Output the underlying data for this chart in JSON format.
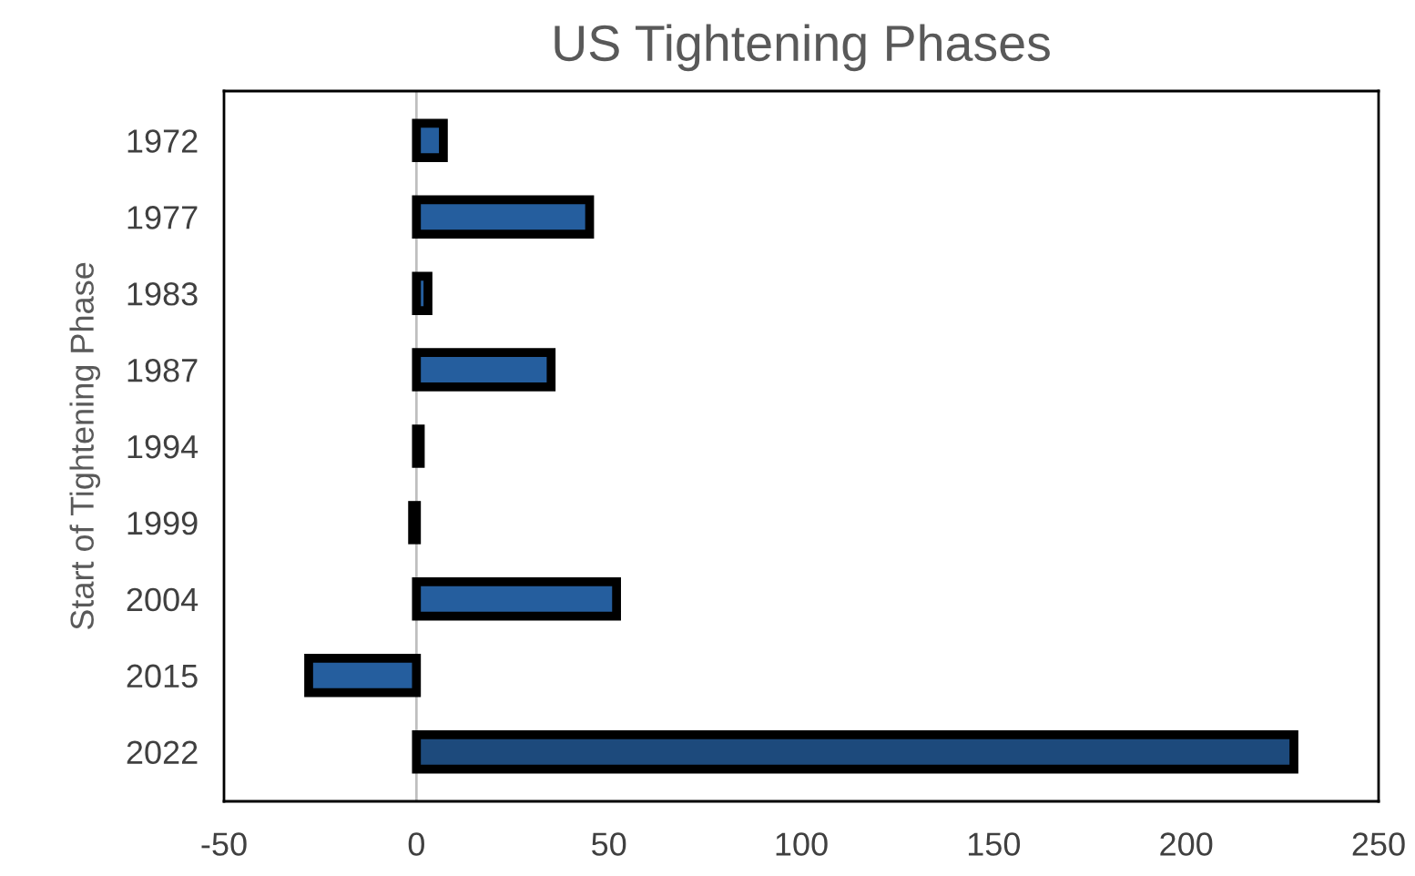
{
  "chart_data": {
    "type": "bar",
    "orientation": "horizontal",
    "title": "US Tightening Phases",
    "ylabel": "Start of Tightening Phase",
    "categories": [
      "1972",
      "1977",
      "1983",
      "1987",
      "1994",
      "1999",
      "2004",
      "2015",
      "2022"
    ],
    "values": [
      7,
      45,
      3,
      35,
      1,
      -1,
      52,
      -28,
      228
    ],
    "colors": [
      "#255e9e",
      "#255e9e",
      "#255e9e",
      "#255e9e",
      "#255e9e",
      "#255e9e",
      "#255e9e",
      "#255e9e",
      "#1d4a7c"
    ],
    "xlim": [
      -50,
      250
    ],
    "xticks": [
      -50,
      0,
      50,
      100,
      150,
      200,
      250
    ],
    "ref_lines": [
      {
        "axis": "x",
        "value": 0,
        "color": "#bfbfbf"
      }
    ]
  }
}
